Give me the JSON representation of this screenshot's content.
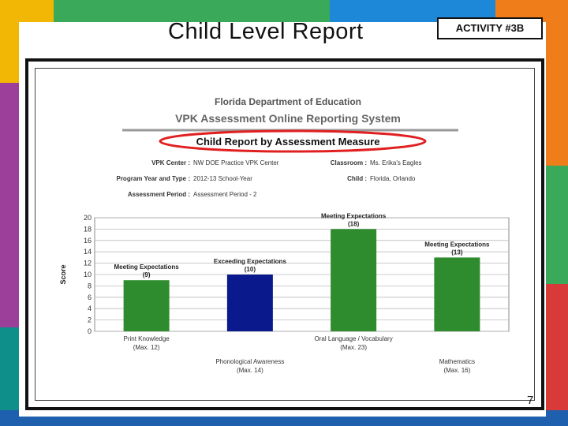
{
  "slide": {
    "title": "Child Level Report",
    "activity_label": "ACTIVITY #3B",
    "page_number": "7"
  },
  "report": {
    "org": "Florida Department of Education",
    "system": "VPK Assessment Online Reporting System",
    "subtitle": "Child Report by Assessment Measure",
    "fields": {
      "vpk_center_label": "VPK Center :",
      "vpk_center_value": "NW DOE Practice VPK Center",
      "classroom_label": "Classroom :",
      "classroom_value": "Ms. Erika's Eagles",
      "program_label": "Program Year and Type :",
      "program_value": "2012-13 School-Year",
      "child_label": "Child :",
      "child_value": "Florida, Orlando",
      "period_label": "Assessment Period :",
      "period_value": "Assessment Period - 2"
    }
  },
  "colors": {
    "green": "#2e8b2e",
    "navy": "#0a1a8c",
    "highlight": "#e02020"
  },
  "chart_data": {
    "type": "bar",
    "ylabel": "Score",
    "ylim": [
      0,
      20
    ],
    "yticks": [
      "0",
      "2",
      "4",
      "6",
      "8",
      "10",
      "12",
      "14",
      "16",
      "18",
      "20"
    ],
    "categories": [
      {
        "name": "Print Knowledge",
        "max": "(Max. 12)"
      },
      {
        "name": "Phonological Awareness",
        "max": "(Max. 14)"
      },
      {
        "name": "Oral Language / Vocabulary",
        "max": "(Max. 23)"
      },
      {
        "name": "Mathematics",
        "max": "(Max. 16)"
      }
    ],
    "values": [
      9,
      10,
      18,
      13
    ],
    "bar_labels": [
      "Meeting Expectations",
      "Exceeding Expectations",
      "Meeting Expectations",
      "Meeting Expectations"
    ],
    "value_labels": [
      "(9)",
      "(10)",
      "(18)",
      "(13)"
    ],
    "bar_colors": [
      "#2e8b2e",
      "#0a1a8c",
      "#2e8b2e",
      "#2e8b2e"
    ],
    "grid": true
  }
}
